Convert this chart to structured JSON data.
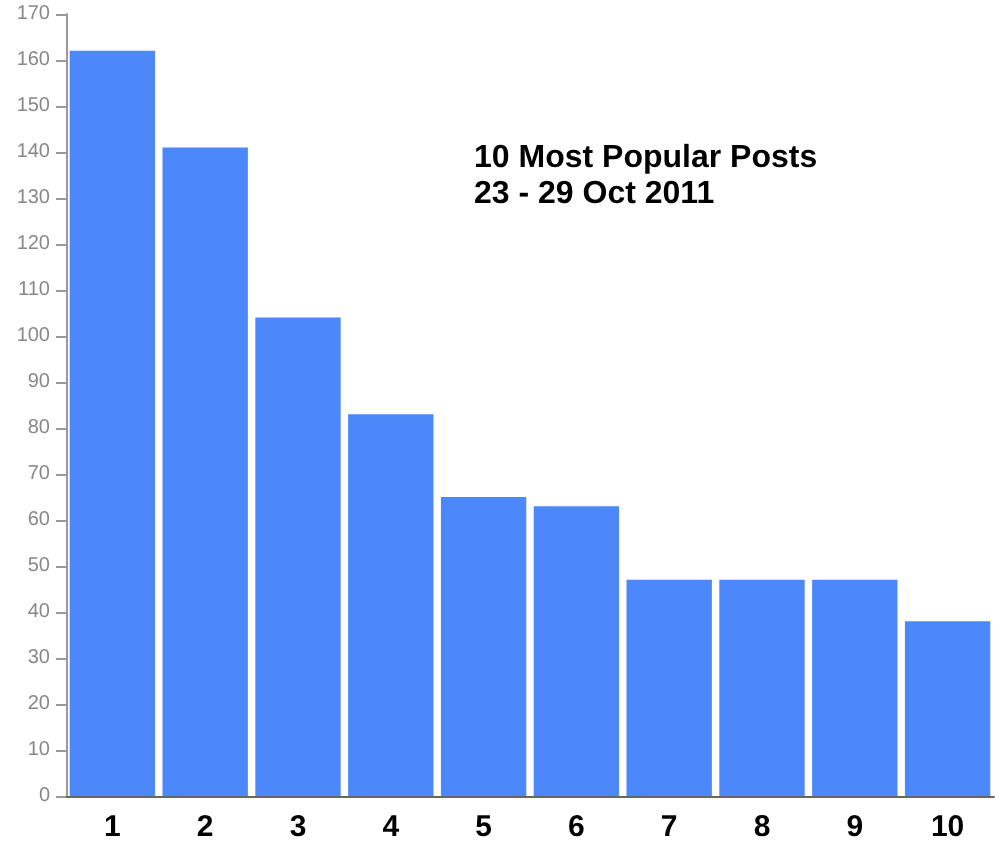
{
  "chart_data": {
    "type": "bar",
    "title": "10 Most Popular Posts",
    "subtitle": "23 - 29 Oct 2011",
    "categories": [
      "1",
      "2",
      "3",
      "4",
      "5",
      "6",
      "7",
      "8",
      "9",
      "10"
    ],
    "values": [
      162,
      141,
      104,
      83,
      65,
      63,
      47,
      47,
      47,
      38
    ],
    "color": "#4d88fb",
    "ylim": [
      0,
      170
    ],
    "yticks": [
      0,
      10,
      20,
      30,
      40,
      50,
      60,
      70,
      80,
      90,
      100,
      110,
      120,
      130,
      140,
      150,
      160,
      170
    ],
    "grid": false
  }
}
